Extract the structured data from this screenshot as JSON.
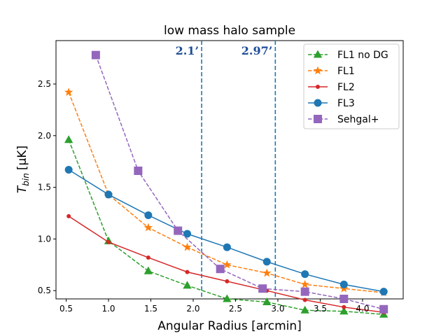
{
  "chart_data": {
    "type": "line",
    "title": "low mass halo sample",
    "xlabel": "Angular Radius [arcmin]",
    "ylabel_main": "T",
    "ylabel_sub": "bin",
    "ylabel_unit": "[μK]",
    "xlim": [
      0.38,
      4.48
    ],
    "ylim": [
      0.42,
      2.92
    ],
    "xticks": [
      0.5,
      1.0,
      1.5,
      2.0,
      2.5,
      3.0,
      3.5,
      4.0
    ],
    "xtick_labels": [
      "0.5",
      "1.0",
      "1.5",
      "2.0",
      "2.5",
      "3.0",
      "3.5",
      "4.0"
    ],
    "yticks": [
      0.5,
      1.0,
      1.5,
      2.0,
      2.5
    ],
    "ytick_labels": [
      "0.5",
      "1.0",
      "1.5",
      "2.0",
      "2.5"
    ],
    "grid": false,
    "legend_position": "top-right",
    "vlines": [
      {
        "x": 2.1,
        "label": "2.1’",
        "color": "#1f77b4"
      },
      {
        "x": 2.97,
        "label": "2.97’",
        "color": "#1f77b4"
      }
    ],
    "series": [
      {
        "name": "FL1 no DG",
        "color": "#2ca02c",
        "dash": true,
        "marker": "triangle",
        "x": [
          0.53,
          1.0,
          1.47,
          1.93,
          2.4,
          2.87,
          3.32,
          3.78,
          4.25
        ],
        "y": [
          1.96,
          0.98,
          0.69,
          0.55,
          0.42,
          0.39,
          0.31,
          0.3,
          0.27
        ]
      },
      {
        "name": "FL1",
        "color": "#ff7f0e",
        "dash": true,
        "marker": "star",
        "x": [
          0.53,
          1.0,
          1.47,
          1.93,
          2.4,
          2.87,
          3.32,
          3.78,
          4.25
        ],
        "y": [
          2.42,
          1.43,
          1.11,
          0.92,
          0.75,
          0.67,
          0.56,
          0.52,
          0.48
        ]
      },
      {
        "name": "FL2",
        "color": "#d62728",
        "dash": false,
        "marker": "dot",
        "x": [
          0.53,
          1.0,
          1.47,
          1.93,
          2.4,
          2.87,
          3.32,
          3.78,
          4.25
        ],
        "y": [
          1.22,
          0.97,
          0.82,
          0.68,
          0.59,
          0.5,
          0.41,
          0.34,
          0.29
        ]
      },
      {
        "name": "FL3",
        "color": "#1f77b4",
        "dash": false,
        "marker": "circle",
        "x": [
          0.53,
          1.0,
          1.47,
          1.93,
          2.4,
          2.87,
          3.32,
          3.78,
          4.25
        ],
        "y": [
          1.67,
          1.43,
          1.23,
          1.05,
          0.92,
          0.78,
          0.66,
          0.56,
          0.49
        ]
      },
      {
        "name": "Sehgal+",
        "color": "#9467bd",
        "dash": true,
        "marker": "square",
        "x": [
          0.85,
          1.35,
          1.82,
          2.32,
          2.82,
          3.32,
          3.78,
          4.25
        ],
        "y": [
          2.78,
          1.66,
          1.08,
          0.71,
          0.52,
          0.49,
          0.42,
          0.32
        ]
      }
    ]
  }
}
